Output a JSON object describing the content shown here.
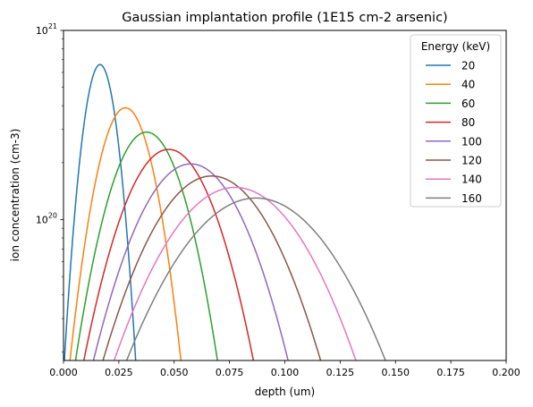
{
  "chart_data": {
    "type": "line",
    "title": "Gaussian implantation profile (1E15 cm-2 arsenic)",
    "xlabel": "depth (um)",
    "ylabel": "ion concentration (cm-3)",
    "xlim": [
      0.0,
      0.2
    ],
    "ylim": [
      1.8e+19,
      1e+21
    ],
    "yscale": "log",
    "grid": false,
    "x_ticks": [
      "0.000",
      "0.025",
      "0.050",
      "0.075",
      "0.100",
      "0.125",
      "0.150",
      "0.175",
      "0.200"
    ],
    "y_tick_labels": [
      {
        "value": 1e+21,
        "base": "10",
        "exp": "21"
      },
      {
        "value": 1e+20,
        "base": "10",
        "exp": "20"
      }
    ],
    "legend": {
      "title": "Energy (keV)",
      "placement": "upper-right"
    },
    "series": [
      {
        "name": "20",
        "color": "#1f77b4",
        "peak_depth": 0.0165,
        "peak_conc": 6.6e+20,
        "sigma": 0.006
      },
      {
        "name": "40",
        "color": "#ff7f0e",
        "peak_depth": 0.028,
        "peak_conc": 3.9e+20,
        "sigma": 0.0101
      },
      {
        "name": "60",
        "color": "#2ca02c",
        "peak_depth": 0.0375,
        "peak_conc": 2.9e+20,
        "sigma": 0.0136
      },
      {
        "name": "80",
        "color": "#d62728",
        "peak_depth": 0.0475,
        "peak_conc": 2.35e+20,
        "sigma": 0.0169
      },
      {
        "name": "100",
        "color": "#9467bd",
        "peak_depth": 0.0575,
        "peak_conc": 1.97e+20,
        "sigma": 0.0201
      },
      {
        "name": "120",
        "color": "#8c564b",
        "peak_depth": 0.067,
        "peak_conc": 1.7e+20,
        "sigma": 0.0232
      },
      {
        "name": "140",
        "color": "#e377c2",
        "peak_depth": 0.0775,
        "peak_conc": 1.48e+20,
        "sigma": 0.0266
      },
      {
        "name": "160",
        "color": "#7f7f7f",
        "peak_depth": 0.087,
        "peak_conc": 1.3e+20,
        "sigma": 0.0294
      }
    ]
  }
}
